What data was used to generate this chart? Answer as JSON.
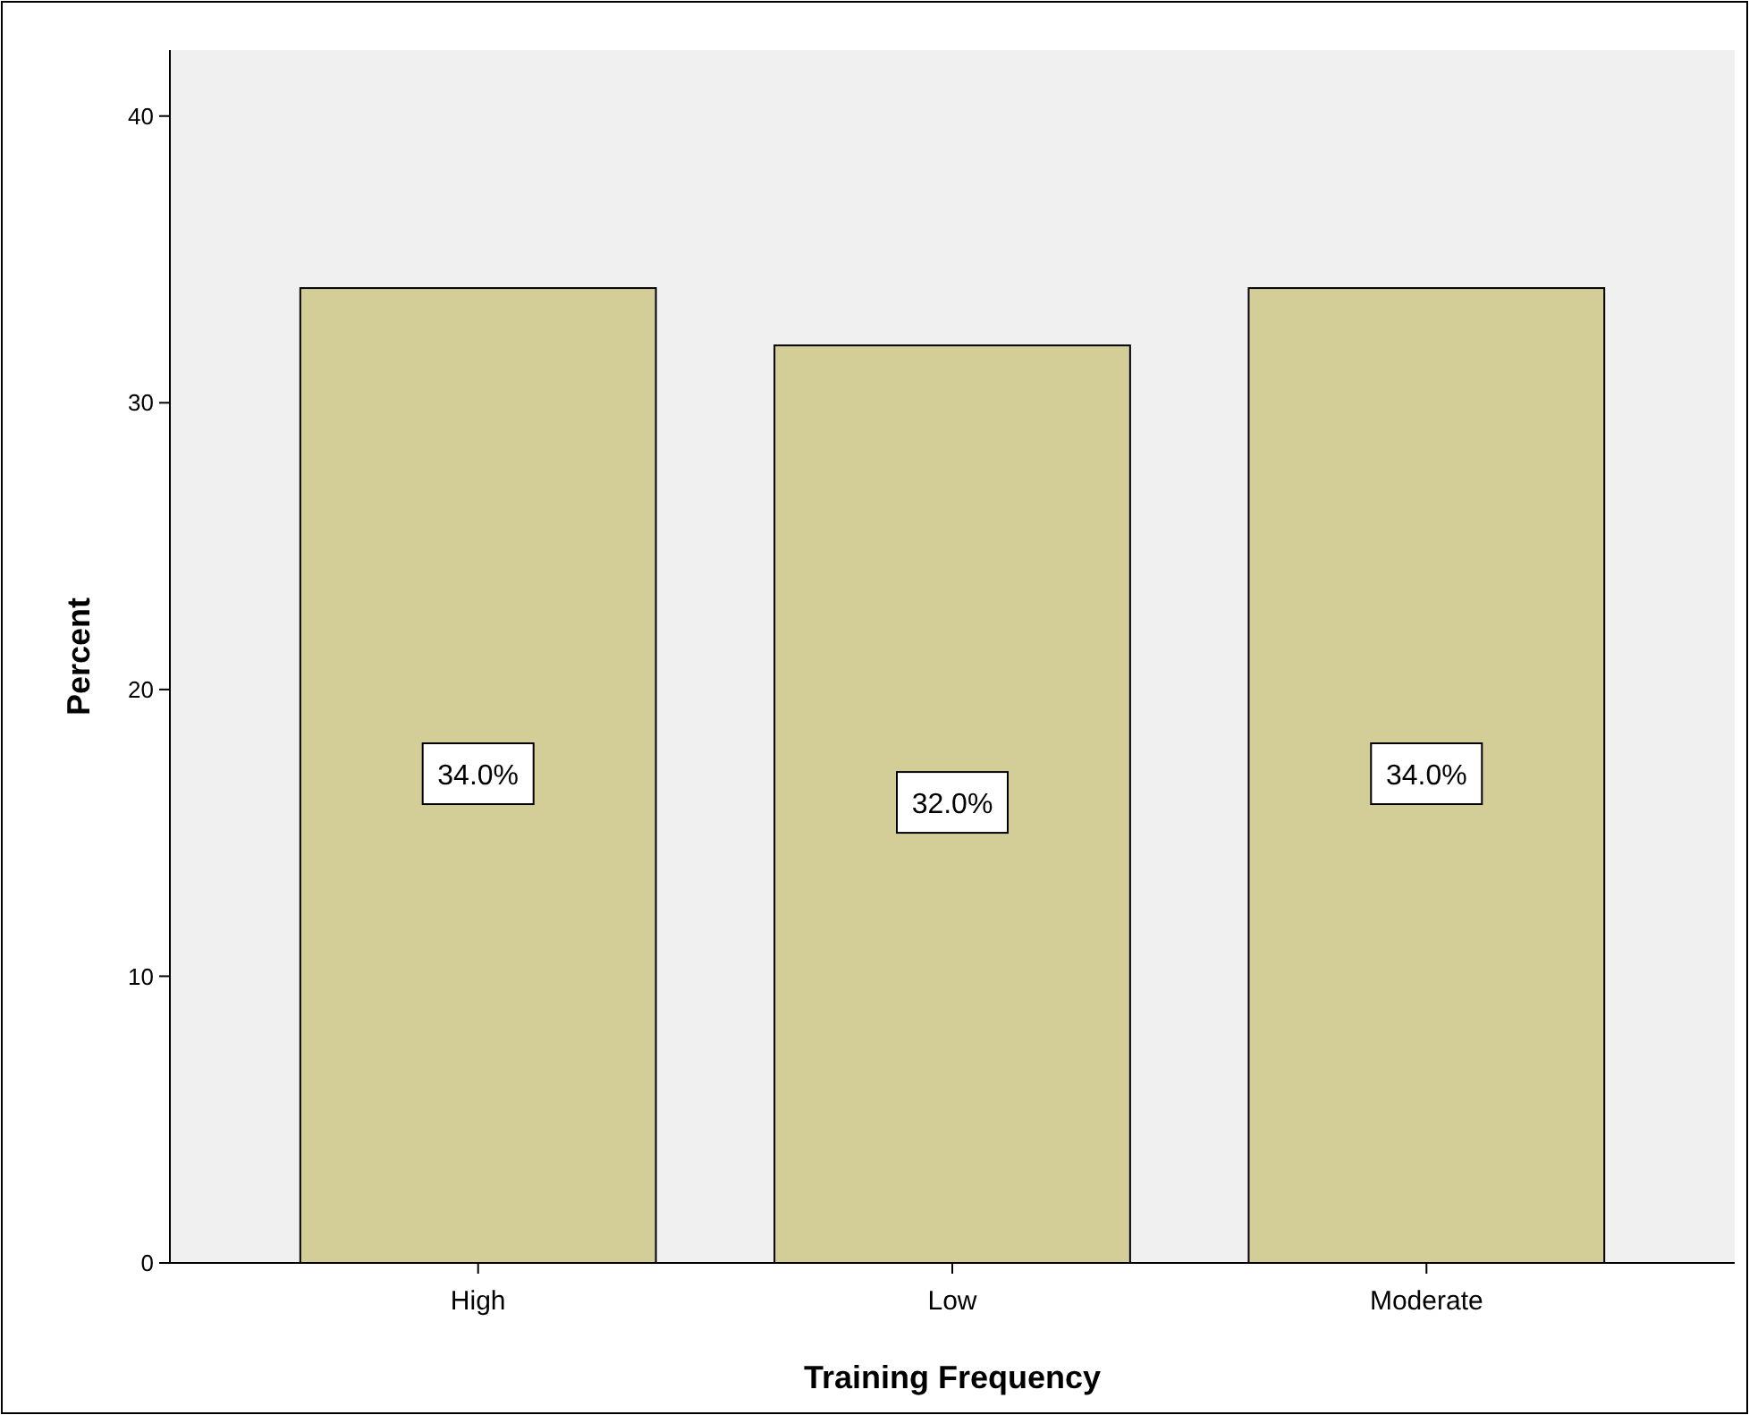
{
  "chart_data": {
    "type": "bar",
    "xlabel": "Training Frequency",
    "ylabel": "Percent",
    "categories": [
      "High",
      "Low",
      "Moderate"
    ],
    "values": [
      34.0,
      32.0,
      34.0
    ],
    "value_labels": [
      "34.0%",
      "32.0%",
      "34.0%"
    ],
    "color": "#d3ce97",
    "ylim": [
      0,
      42.3
    ],
    "yticks": [
      0,
      10,
      20,
      30,
      40
    ],
    "grid": false
  }
}
